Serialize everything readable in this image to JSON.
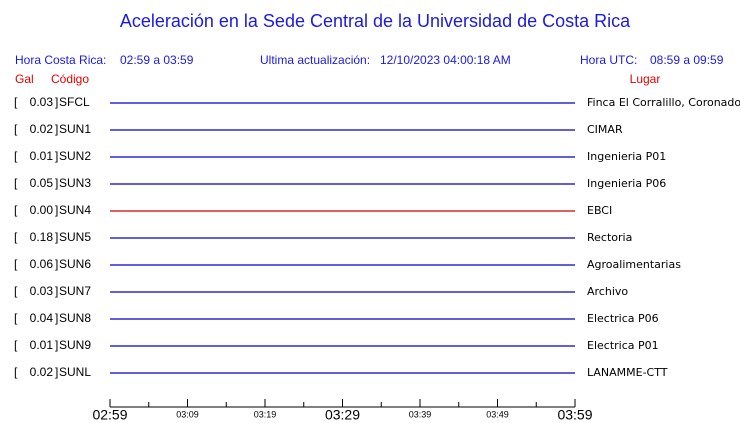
{
  "header": {
    "title": "Aceleración en la Sede Central de la Universidad de Costa Rica",
    "local_label": "Hora Costa Rica:",
    "local_range": "02:59 a 03:59",
    "update_label": "Ultima actualización:",
    "update_value": "12/10/2023 04:00:18 AM",
    "utc_label": "Hora UTC:",
    "utc_range": "08:59 a 09:59",
    "gal_label": "Gal",
    "code_label": "Código",
    "place_label": "Lugar"
  },
  "stations": [
    {
      "gal": "0.03",
      "code": "SFCL",
      "place": "Finca El Corralillo, Coronado",
      "color": "#0000cc"
    },
    {
      "gal": "0.02",
      "code": "SUN1",
      "place": "CIMAR",
      "color": "#0000cc"
    },
    {
      "gal": "0.01",
      "code": "SUN2",
      "place": "Ingenieria P01",
      "color": "#0000cc"
    },
    {
      "gal": "0.05",
      "code": "SUN3",
      "place": "Ingenieria P06",
      "color": "#0000cc"
    },
    {
      "gal": "0.00",
      "code": "SUN4",
      "place": "EBCI",
      "color": "#cc0000"
    },
    {
      "gal": "0.18",
      "code": "SUN5",
      "place": "Rectoria",
      "color": "#0000cc"
    },
    {
      "gal": "0.06",
      "code": "SUN6",
      "place": "Agroalimentarias",
      "color": "#0000cc"
    },
    {
      "gal": "0.03",
      "code": "SUN7",
      "place": "Archivo",
      "color": "#0000cc"
    },
    {
      "gal": "0.04",
      "code": "SUN8",
      "place": "Electrica P06",
      "color": "#0000cc"
    },
    {
      "gal": "0.01",
      "code": "SUN9",
      "place": "Electrica P01",
      "color": "#0000cc"
    },
    {
      "gal": "0.02",
      "code": "SUNL",
      "place": "LANAMME-CTT",
      "color": "#0000cc"
    }
  ],
  "time_axis": {
    "major": [
      "02:59",
      "03:29",
      "03:59"
    ],
    "minor": [
      "03:09",
      "03:19",
      "03:39",
      "03:49"
    ]
  }
}
